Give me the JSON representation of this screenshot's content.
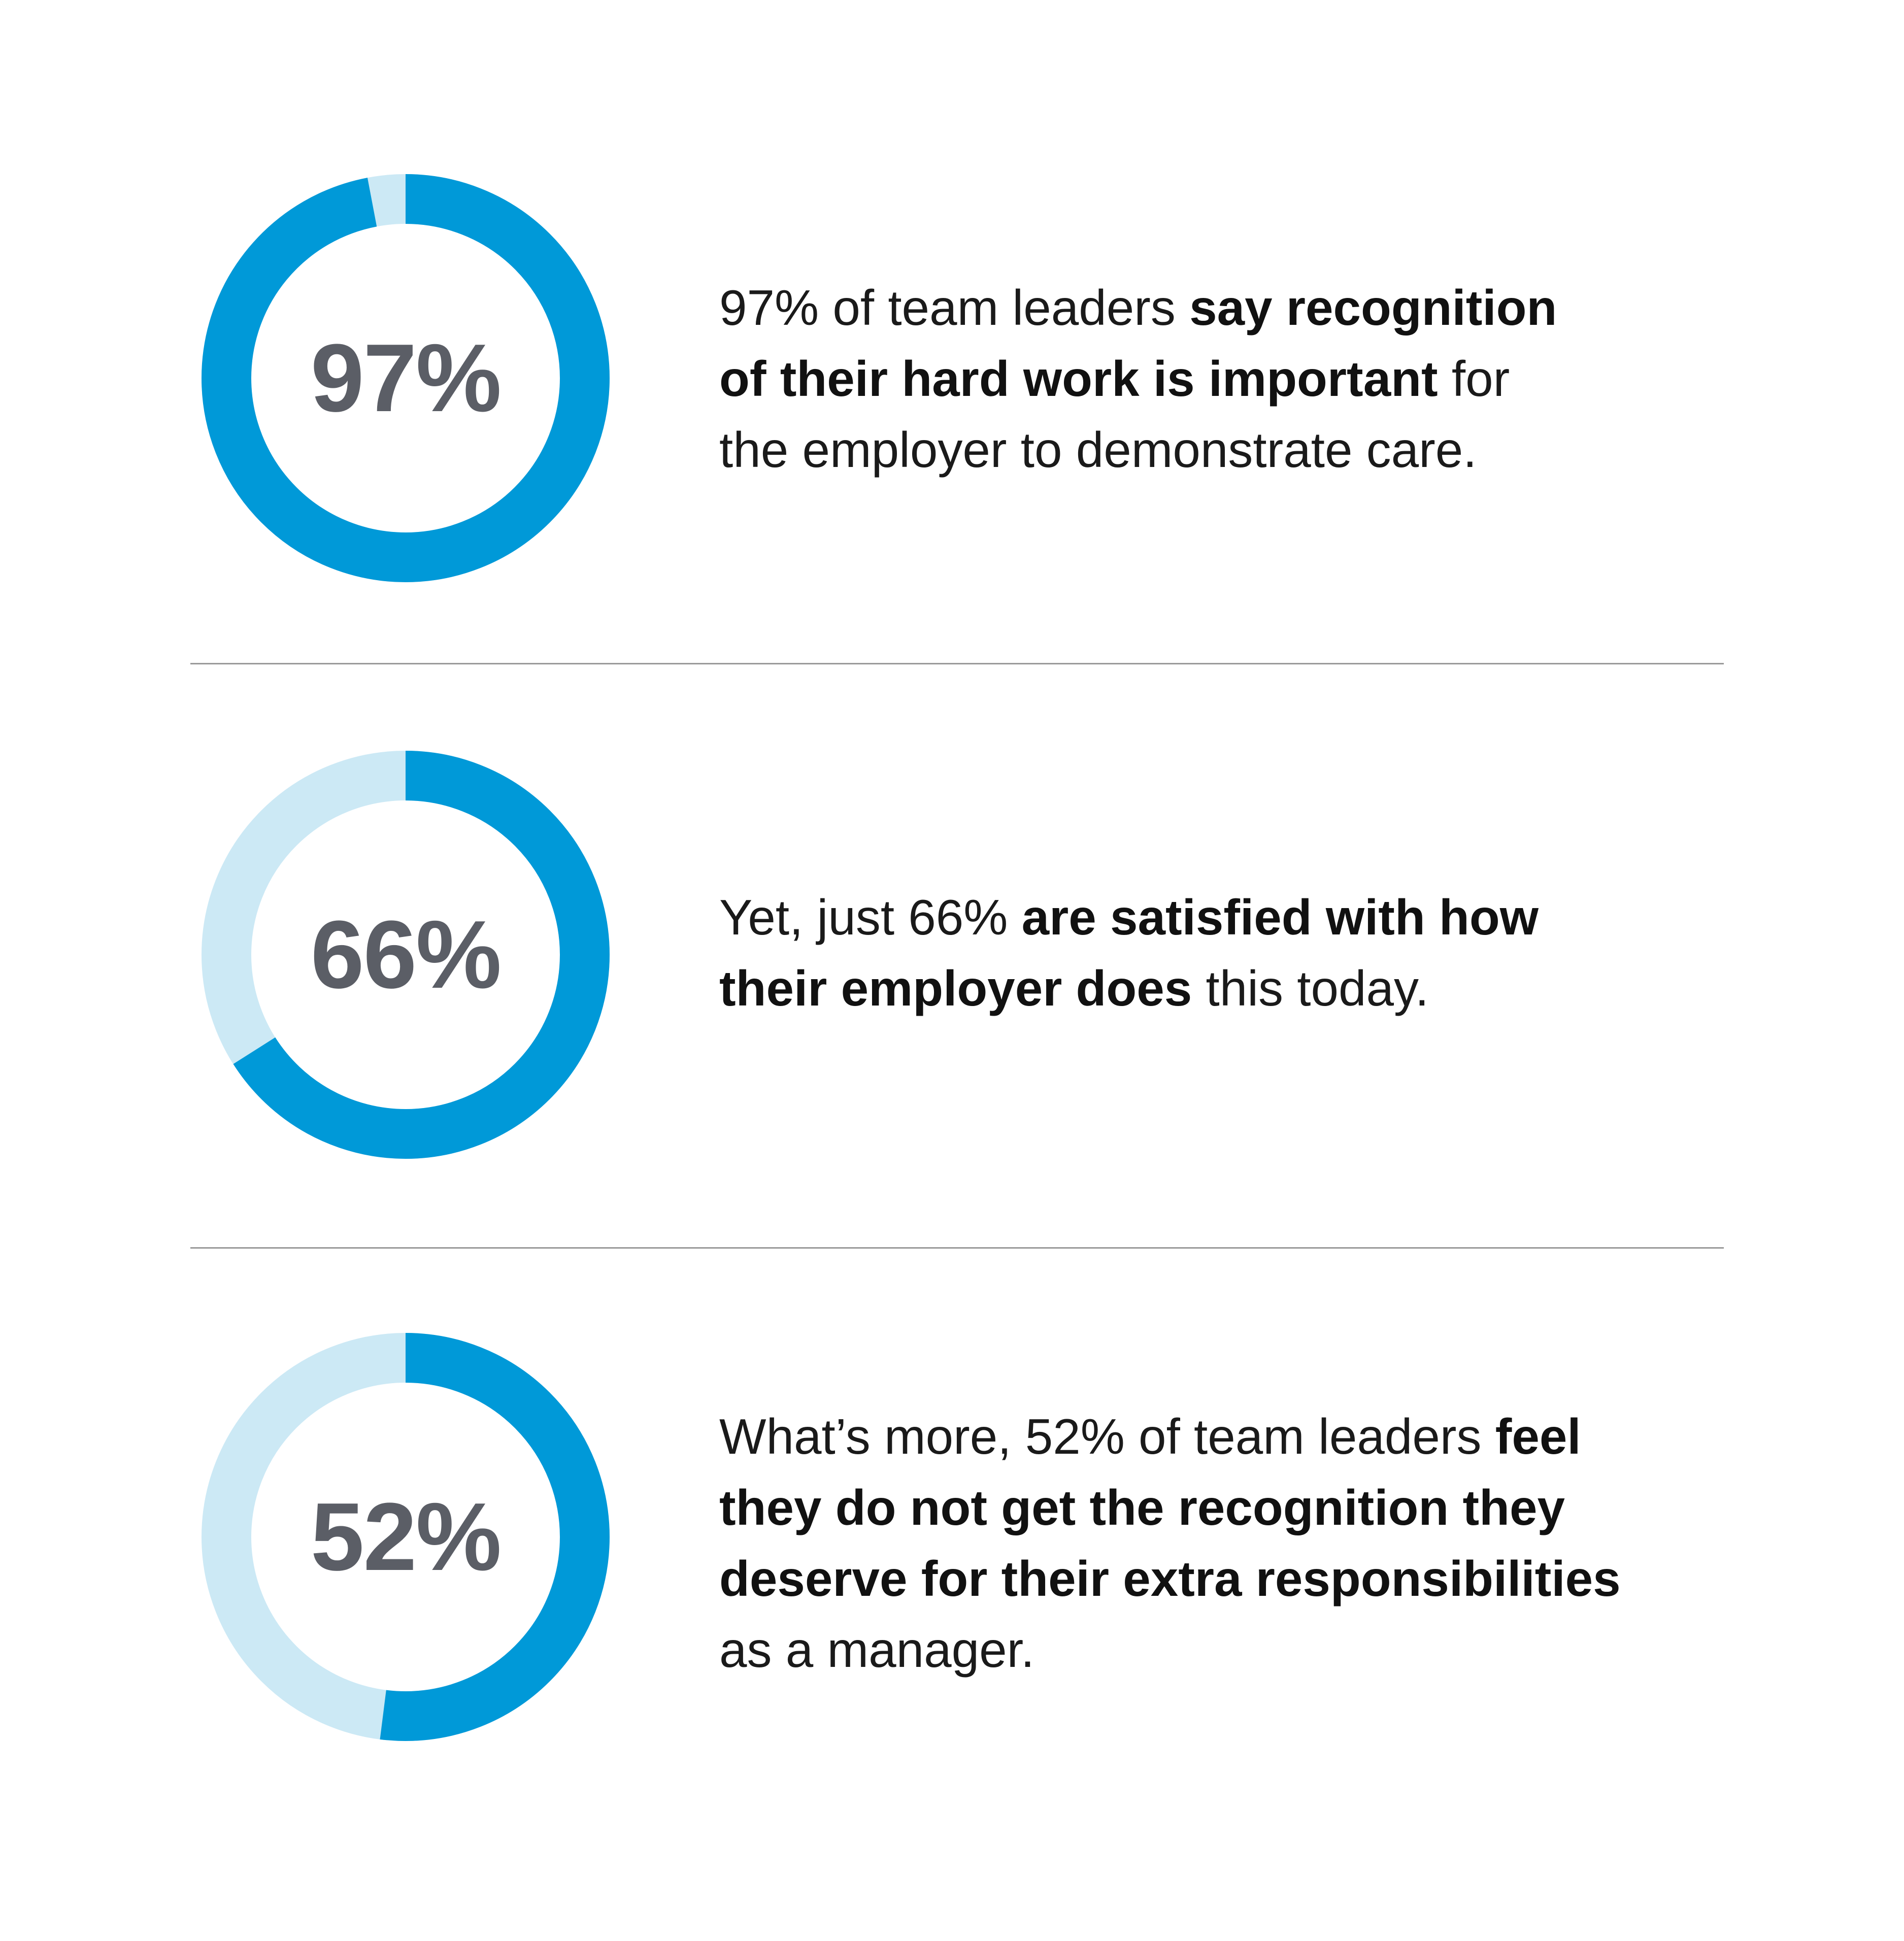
{
  "colors": {
    "filled": "#0099d8",
    "remaining": "#cce9f5",
    "percent_text": "#5b5e66"
  },
  "chart_data": [
    {
      "type": "pie",
      "variant": "donut",
      "value": 97,
      "label": "97%"
    },
    {
      "type": "pie",
      "variant": "donut",
      "value": 66,
      "label": "66%"
    },
    {
      "type": "pie",
      "variant": "donut",
      "value": 52,
      "label": "52%"
    }
  ],
  "stats": [
    {
      "lines": [
        [
          {
            "t": "97% of team leaders ",
            "b": false
          },
          {
            "t": "say recognition",
            "b": true
          }
        ],
        [
          {
            "t": "of their hard work is important",
            "b": true
          },
          {
            "t": " for",
            "b": false
          }
        ],
        [
          {
            "t": "the employer to demonstrate care.",
            "b": false
          }
        ]
      ]
    },
    {
      "lines": [
        [
          {
            "t": "Yet, just 66% ",
            "b": false
          },
          {
            "t": "are satisfied with how",
            "b": true
          }
        ],
        [
          {
            "t": "their employer does",
            "b": true
          },
          {
            "t": " this today.",
            "b": false
          }
        ]
      ]
    },
    {
      "lines": [
        [
          {
            "t": "What’s more, 52% of team leaders ",
            "b": false
          },
          {
            "t": "feel",
            "b": true
          }
        ],
        [
          {
            "t": "they do not get the recognition they",
            "b": true
          }
        ],
        [
          {
            "t": "deserve for their extra responsibilities",
            "b": true
          }
        ],
        [
          {
            "t": "as a manager.",
            "b": false
          }
        ]
      ]
    }
  ]
}
